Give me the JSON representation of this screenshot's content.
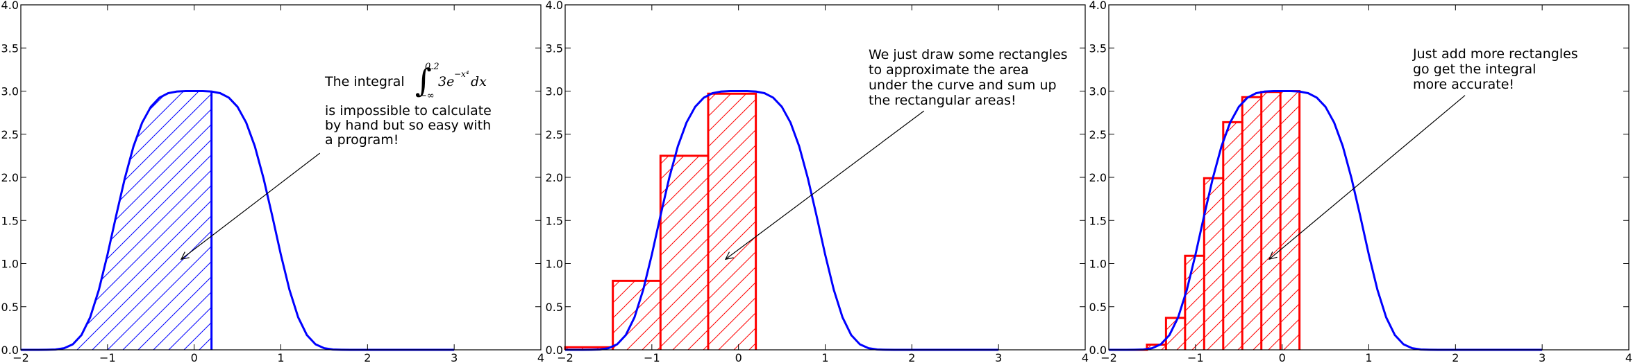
{
  "chart_data": [
    {
      "type": "area",
      "xlim": [
        -2,
        4
      ],
      "ylim": [
        0,
        4
      ],
      "x_ticks": [
        "−2",
        "−1",
        "0",
        "1",
        "2",
        "3",
        "4"
      ],
      "y_ticks": [
        "0.0",
        "0.5",
        "1.0",
        "1.5",
        "2.0",
        "2.5",
        "3.0",
        "3.5",
        "4.0"
      ],
      "curve": {
        "color": "#0000ff",
        "x": [
          -2,
          -1.9,
          -1.8,
          -1.7,
          -1.6,
          -1.5,
          -1.4,
          -1.3,
          -1.2,
          -1.1,
          -1,
          -0.9,
          -0.8,
          -0.7,
          -0.6,
          -0.5,
          -0.4,
          -0.3,
          -0.2,
          -0.1,
          0,
          0.1,
          0.2,
          0.3,
          0.4,
          0.5,
          0.6,
          0.7,
          0.8,
          0.9,
          1,
          1.1,
          1.2,
          1.3,
          1.4,
          1.5,
          1.6,
          1.7,
          1.8,
          1.9,
          2,
          2.1,
          2.2,
          2.3,
          2.4,
          2.5,
          2.6,
          2.7,
          2.8,
          2.9,
          3
        ],
        "y": [
          0,
          0,
          0,
          0.001,
          0.004,
          0.019,
          0.064,
          0.172,
          0.377,
          0.694,
          1.104,
          1.557,
          1.99,
          2.36,
          2.635,
          2.818,
          2.924,
          2.976,
          2.995,
          3,
          3,
          3,
          2.995,
          2.976,
          2.924,
          2.818,
          2.635,
          2.36,
          1.99,
          1.557,
          1.104,
          0.694,
          0.377,
          0.172,
          0.064,
          0.019,
          0.004,
          0.001,
          0,
          0,
          0,
          0,
          0,
          0,
          0,
          0,
          0,
          0,
          0,
          0,
          0
        ]
      },
      "shaded_region": {
        "x_max": 0.2,
        "color": "#0000ff",
        "hatch": "/"
      },
      "annotation": {
        "text_prefix": "The integral",
        "integral_sign": "∫",
        "integral_upper": "0.2",
        "integral_lower": "−∞",
        "integrand": "3e",
        "integrand_exponent": "−x⁴",
        "differential": "dx",
        "lines": [
          "is impossible to calculate",
          "by hand but so easy with",
          "a program!"
        ],
        "arrow_tip": [
          -0.15,
          1.05
        ],
        "arrow_tail": [
          1.45,
          2.28
        ]
      }
    },
    {
      "type": "bar",
      "xlim": [
        -2,
        4
      ],
      "ylim": [
        0,
        4
      ],
      "x_ticks": [
        "−2",
        "−1",
        "0",
        "1",
        "2",
        "3",
        "4"
      ],
      "y_ticks": [
        "0.0",
        "0.5",
        "1.0",
        "1.5",
        "2.0",
        "2.5",
        "3.0",
        "3.5",
        "4.0"
      ],
      "curve_ref": "same curve 3e^(-x^4)",
      "rectangles": {
        "color": "#ff0000",
        "hatch": "/",
        "edges": [
          -2,
          -1.45,
          -0.9,
          -0.35,
          0.2
        ],
        "heights": [
          0.03,
          0.8,
          2.25,
          2.97
        ]
      },
      "annotation": {
        "lines": [
          "We just draw some rectangles",
          "to approximate the area",
          "under the curve and sum up",
          "the rectangular areas!"
        ],
        "arrow_tip": [
          -0.15,
          1.05
        ],
        "arrow_tail": [
          2.14,
          2.77
        ]
      }
    },
    {
      "type": "bar",
      "xlim": [
        -2,
        4
      ],
      "ylim": [
        0,
        4
      ],
      "x_ticks": [
        "−2",
        "−1",
        "0",
        "1",
        "2",
        "3",
        "4"
      ],
      "y_ticks": [
        "0.0",
        "0.5",
        "1.0",
        "1.5",
        "2.0",
        "2.5",
        "3.0",
        "3.5",
        "4.0"
      ],
      "curve_ref": "same curve 3e^(-x^4)",
      "rectangles": {
        "color": "#ff0000",
        "hatch": "/",
        "edges": [
          -2,
          -1.78,
          -1.56,
          -1.34,
          -1.12,
          -0.9,
          -0.68,
          -0.46,
          -0.24,
          -0.02,
          0.2
        ],
        "heights": [
          0,
          0,
          0.06,
          0.37,
          1.09,
          1.99,
          2.64,
          2.93,
          2.99,
          3.0
        ]
      },
      "annotation": {
        "lines": [
          "Just add more rectangles",
          "go get the integral",
          "more accurate!"
        ],
        "arrow_tip": [
          -0.15,
          1.05
        ],
        "arrow_tail": [
          2.11,
          2.95
        ]
      }
    }
  ]
}
